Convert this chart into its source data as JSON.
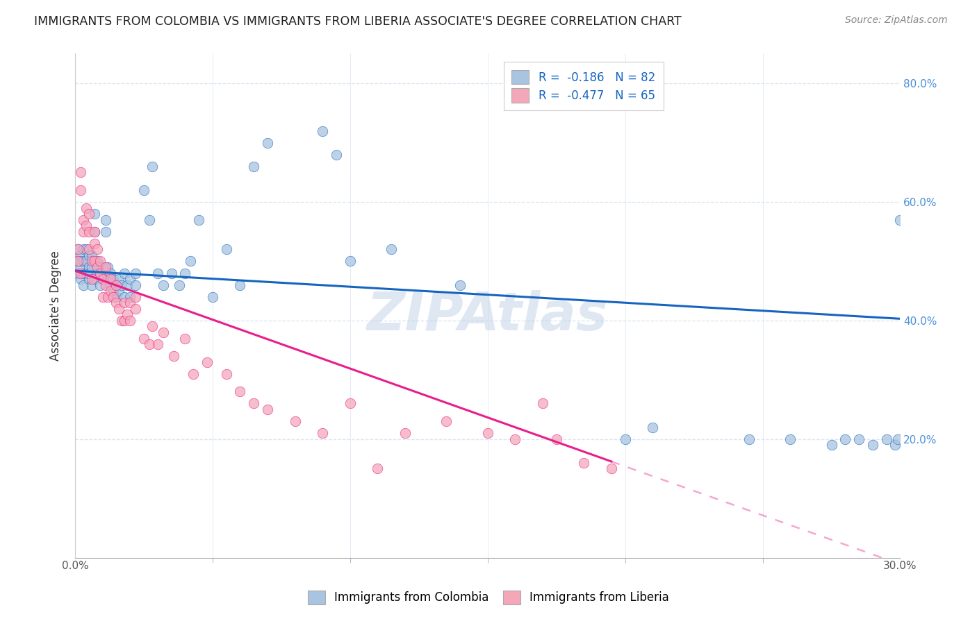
{
  "title": "IMMIGRANTS FROM COLOMBIA VS IMMIGRANTS FROM LIBERIA ASSOCIATE'S DEGREE CORRELATION CHART",
  "source": "Source: ZipAtlas.com",
  "ylabel": "Associate's Degree",
  "legend_label1": "Immigrants from Colombia",
  "legend_label2": "Immigrants from Liberia",
  "R1": -0.186,
  "N1": 82,
  "R2": -0.477,
  "N2": 65,
  "color1": "#a8c4e0",
  "color2": "#f4a7b9",
  "line_color1": "#1565c0",
  "line_color2": "#e91e8c",
  "xmin": 0.0,
  "xmax": 0.3,
  "ymin": 0.0,
  "ymax": 0.85,
  "background_color": "#ffffff",
  "colombia_x": [
    0.001,
    0.001,
    0.001,
    0.002,
    0.002,
    0.002,
    0.002,
    0.003,
    0.003,
    0.003,
    0.003,
    0.004,
    0.004,
    0.004,
    0.005,
    0.005,
    0.005,
    0.005,
    0.006,
    0.006,
    0.006,
    0.007,
    0.007,
    0.007,
    0.008,
    0.008,
    0.009,
    0.009,
    0.01,
    0.01,
    0.011,
    0.011,
    0.012,
    0.012,
    0.013,
    0.013,
    0.014,
    0.014,
    0.015,
    0.015,
    0.016,
    0.016,
    0.017,
    0.018,
    0.018,
    0.019,
    0.02,
    0.02,
    0.022,
    0.022,
    0.025,
    0.027,
    0.028,
    0.03,
    0.032,
    0.035,
    0.038,
    0.04,
    0.042,
    0.045,
    0.05,
    0.055,
    0.06,
    0.065,
    0.07,
    0.09,
    0.095,
    0.1,
    0.115,
    0.14,
    0.2,
    0.21,
    0.245,
    0.26,
    0.275,
    0.28,
    0.285,
    0.29,
    0.295,
    0.298,
    0.299,
    0.3
  ],
  "colombia_y": [
    0.5,
    0.48,
    0.52,
    0.47,
    0.49,
    0.51,
    0.5,
    0.48,
    0.46,
    0.5,
    0.52,
    0.48,
    0.5,
    0.52,
    0.47,
    0.49,
    0.51,
    0.48,
    0.46,
    0.49,
    0.51,
    0.47,
    0.55,
    0.58,
    0.48,
    0.5,
    0.46,
    0.48,
    0.47,
    0.49,
    0.55,
    0.57,
    0.47,
    0.49,
    0.46,
    0.48,
    0.45,
    0.47,
    0.44,
    0.46,
    0.45,
    0.47,
    0.46,
    0.48,
    0.44,
    0.46,
    0.47,
    0.44,
    0.46,
    0.48,
    0.62,
    0.57,
    0.66,
    0.48,
    0.46,
    0.48,
    0.46,
    0.48,
    0.5,
    0.57,
    0.44,
    0.52,
    0.46,
    0.66,
    0.7,
    0.72,
    0.68,
    0.5,
    0.52,
    0.46,
    0.2,
    0.22,
    0.2,
    0.2,
    0.19,
    0.2,
    0.2,
    0.19,
    0.2,
    0.19,
    0.2,
    0.57
  ],
  "liberia_x": [
    0.001,
    0.001,
    0.002,
    0.002,
    0.002,
    0.003,
    0.003,
    0.004,
    0.004,
    0.005,
    0.005,
    0.005,
    0.006,
    0.006,
    0.007,
    0.007,
    0.007,
    0.008,
    0.008,
    0.009,
    0.009,
    0.01,
    0.01,
    0.011,
    0.011,
    0.012,
    0.013,
    0.013,
    0.014,
    0.015,
    0.015,
    0.016,
    0.017,
    0.018,
    0.018,
    0.019,
    0.02,
    0.02,
    0.022,
    0.022,
    0.025,
    0.027,
    0.028,
    0.03,
    0.032,
    0.036,
    0.04,
    0.043,
    0.048,
    0.055,
    0.06,
    0.065,
    0.07,
    0.08,
    0.09,
    0.1,
    0.11,
    0.12,
    0.135,
    0.15,
    0.16,
    0.17,
    0.175,
    0.185,
    0.195
  ],
  "liberia_y": [
    0.5,
    0.52,
    0.48,
    0.62,
    0.65,
    0.55,
    0.57,
    0.56,
    0.59,
    0.52,
    0.55,
    0.58,
    0.47,
    0.5,
    0.5,
    0.53,
    0.55,
    0.49,
    0.52,
    0.48,
    0.5,
    0.44,
    0.47,
    0.46,
    0.49,
    0.44,
    0.45,
    0.47,
    0.44,
    0.43,
    0.46,
    0.42,
    0.4,
    0.4,
    0.43,
    0.41,
    0.4,
    0.43,
    0.42,
    0.44,
    0.37,
    0.36,
    0.39,
    0.36,
    0.38,
    0.34,
    0.37,
    0.31,
    0.33,
    0.31,
    0.28,
    0.26,
    0.25,
    0.23,
    0.21,
    0.26,
    0.15,
    0.21,
    0.23,
    0.21,
    0.2,
    0.26,
    0.2,
    0.16,
    0.15
  ],
  "watermark": "ZIPAtlas",
  "grid_color": "#d8e4f0",
  "tick_color": "#4a90d9"
}
